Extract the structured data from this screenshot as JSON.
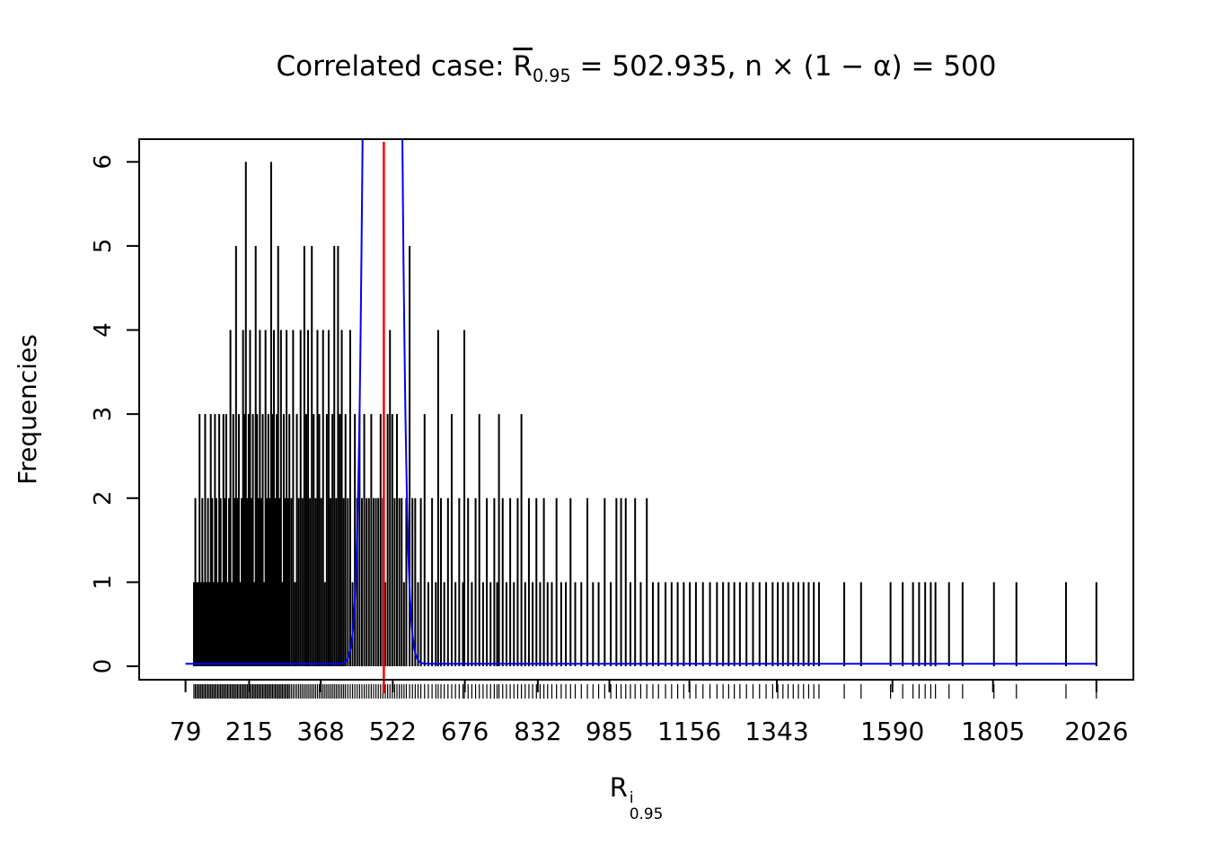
{
  "title": {
    "prefix": "Correlated case: ",
    "r": "R",
    "r_sub": "0.95",
    "suffix": " = 502.935, n × (1 − α) = 500"
  },
  "ylabel": "Frequencies",
  "xlabel_parts": {
    "r": "R",
    "sup": "i",
    "sub": "0.95"
  },
  "chart_data": {
    "type": "bar",
    "subtype": "frequency-spikes-with-density-curve-and-rug",
    "title": "Correlated case: R̄0.95 = 502.935, n × (1 − α) = 500",
    "xlabel": "R^i_0.95",
    "ylabel": "Frequencies",
    "xlim": [
      -20,
      2105
    ],
    "ylim": [
      -0.16,
      6.27
    ],
    "x_ticks": [
      79,
      215,
      368,
      522,
      676,
      832,
      985,
      1156,
      1343,
      1590,
      1805,
      2026
    ],
    "x_tick_labels": [
      "79",
      "215",
      "368",
      "522",
      "676",
      "832",
      "985",
      "1156",
      "1343",
      "1590",
      "1805",
      "2026"
    ],
    "y_ticks": [
      0,
      1,
      2,
      3,
      4,
      5,
      6
    ],
    "y_tick_labels": [
      "0",
      "1",
      "2",
      "3",
      "4",
      "5",
      "6"
    ],
    "colors": {
      "spikes": "#000000",
      "curve": "#0000ff",
      "vline": "#ff0000",
      "box": "#000000"
    },
    "red_vline_x": 502.935,
    "blue_curve": {
      "center": 500,
      "sd": 20,
      "peak_height": 60,
      "baseline": 0.03
    },
    "rug": true,
    "spikes": [
      [
        97,
        1
      ],
      [
        100,
        2
      ],
      [
        103,
        1
      ],
      [
        106,
        1
      ],
      [
        109,
        3
      ],
      [
        112,
        1
      ],
      [
        115,
        2
      ],
      [
        118,
        1
      ],
      [
        121,
        3
      ],
      [
        124,
        1
      ],
      [
        127,
        2
      ],
      [
        130,
        1
      ],
      [
        133,
        3
      ],
      [
        136,
        2
      ],
      [
        139,
        1
      ],
      [
        142,
        3
      ],
      [
        145,
        2
      ],
      [
        148,
        1
      ],
      [
        151,
        3
      ],
      [
        154,
        2
      ],
      [
        157,
        1
      ],
      [
        160,
        3
      ],
      [
        163,
        2
      ],
      [
        166,
        3
      ],
      [
        169,
        1
      ],
      [
        172,
        2
      ],
      [
        175,
        4
      ],
      [
        178,
        1
      ],
      [
        181,
        3
      ],
      [
        184,
        2
      ],
      [
        187,
        5
      ],
      [
        190,
        2
      ],
      [
        193,
        3
      ],
      [
        196,
        1
      ],
      [
        199,
        2
      ],
      [
        202,
        4
      ],
      [
        205,
        3
      ],
      [
        208,
        6
      ],
      [
        211,
        2
      ],
      [
        214,
        3
      ],
      [
        217,
        4
      ],
      [
        220,
        2
      ],
      [
        223,
        3
      ],
      [
        226,
        1
      ],
      [
        229,
        5
      ],
      [
        232,
        3
      ],
      [
        235,
        2
      ],
      [
        238,
        4
      ],
      [
        241,
        2
      ],
      [
        244,
        3
      ],
      [
        247,
        1
      ],
      [
        250,
        4
      ],
      [
        253,
        2
      ],
      [
        256,
        3
      ],
      [
        259,
        2
      ],
      [
        262,
        6
      ],
      [
        265,
        3
      ],
      [
        268,
        4
      ],
      [
        271,
        2
      ],
      [
        274,
        3
      ],
      [
        277,
        5
      ],
      [
        280,
        2
      ],
      [
        283,
        4
      ],
      [
        286,
        1
      ],
      [
        289,
        3
      ],
      [
        292,
        2
      ],
      [
        295,
        4
      ],
      [
        298,
        2
      ],
      [
        301,
        3
      ],
      [
        305,
        2
      ],
      [
        309,
        4
      ],
      [
        313,
        1
      ],
      [
        317,
        3
      ],
      [
        321,
        2
      ],
      [
        325,
        4
      ],
      [
        329,
        2
      ],
      [
        333,
        5
      ],
      [
        337,
        3
      ],
      [
        341,
        4
      ],
      [
        345,
        2
      ],
      [
        349,
        5
      ],
      [
        353,
        3
      ],
      [
        357,
        2
      ],
      [
        361,
        4
      ],
      [
        365,
        3
      ],
      [
        369,
        2
      ],
      [
        373,
        4
      ],
      [
        377,
        1
      ],
      [
        381,
        3
      ],
      [
        385,
        4
      ],
      [
        389,
        2
      ],
      [
        393,
        3
      ],
      [
        397,
        5
      ],
      [
        401,
        2
      ],
      [
        405,
        5
      ],
      [
        409,
        3
      ],
      [
        413,
        4
      ],
      [
        417,
        2
      ],
      [
        421,
        3
      ],
      [
        426,
        2
      ],
      [
        431,
        4
      ],
      [
        436,
        1
      ],
      [
        441,
        3
      ],
      [
        446,
        2
      ],
      [
        451,
        3
      ],
      [
        456,
        2
      ],
      [
        461,
        3
      ],
      [
        466,
        2
      ],
      [
        471,
        2
      ],
      [
        476,
        3
      ],
      [
        481,
        2
      ],
      [
        486,
        2
      ],
      [
        491,
        2
      ],
      [
        496,
        3
      ],
      [
        501,
        2
      ],
      [
        506,
        1
      ],
      [
        511,
        3
      ],
      [
        516,
        4
      ],
      [
        521,
        3
      ],
      [
        526,
        2
      ],
      [
        531,
        3
      ],
      [
        536,
        2
      ],
      [
        541,
        2
      ],
      [
        546,
        1
      ],
      [
        551,
        2
      ],
      [
        558,
        5
      ],
      [
        564,
        2
      ],
      [
        570,
        2
      ],
      [
        576,
        1
      ],
      [
        582,
        2
      ],
      [
        590,
        3
      ],
      [
        598,
        1
      ],
      [
        606,
        2
      ],
      [
        614,
        1
      ],
      [
        619,
        4
      ],
      [
        625,
        2
      ],
      [
        632,
        1
      ],
      [
        640,
        2
      ],
      [
        648,
        3
      ],
      [
        656,
        1
      ],
      [
        664,
        2
      ],
      [
        672,
        1
      ],
      [
        675,
        4
      ],
      [
        683,
        2
      ],
      [
        691,
        1
      ],
      [
        699,
        2
      ],
      [
        707,
        3
      ],
      [
        715,
        1
      ],
      [
        723,
        2
      ],
      [
        731,
        1
      ],
      [
        739,
        2
      ],
      [
        745,
        1
      ],
      [
        749,
        3
      ],
      [
        757,
        2
      ],
      [
        765,
        1
      ],
      [
        773,
        2
      ],
      [
        781,
        1
      ],
      [
        789,
        2
      ],
      [
        797,
        3
      ],
      [
        805,
        1
      ],
      [
        813,
        2
      ],
      [
        821,
        1
      ],
      [
        829,
        2
      ],
      [
        837,
        1
      ],
      [
        845,
        2
      ],
      [
        853,
        1
      ],
      [
        862,
        1
      ],
      [
        872,
        2
      ],
      [
        882,
        1
      ],
      [
        892,
        1
      ],
      [
        902,
        2
      ],
      [
        912,
        1
      ],
      [
        925,
        1
      ],
      [
        938,
        2
      ],
      [
        950,
        1
      ],
      [
        962,
        1
      ],
      [
        975,
        2
      ],
      [
        988,
        1
      ],
      [
        1000,
        2
      ],
      [
        1010,
        2
      ],
      [
        1020,
        2
      ],
      [
        1030,
        1
      ],
      [
        1040,
        2
      ],
      [
        1052,
        1
      ],
      [
        1065,
        2
      ],
      [
        1078,
        1
      ],
      [
        1090,
        1
      ],
      [
        1105,
        1
      ],
      [
        1118,
        1
      ],
      [
        1131,
        1
      ],
      [
        1144,
        1
      ],
      [
        1157,
        1
      ],
      [
        1170,
        1
      ],
      [
        1185,
        1
      ],
      [
        1200,
        1
      ],
      [
        1215,
        1
      ],
      [
        1228,
        1
      ],
      [
        1240,
        1
      ],
      [
        1252,
        1
      ],
      [
        1264,
        1
      ],
      [
        1278,
        1
      ],
      [
        1292,
        1
      ],
      [
        1306,
        1
      ],
      [
        1320,
        1
      ],
      [
        1334,
        1
      ],
      [
        1345,
        1
      ],
      [
        1356,
        1
      ],
      [
        1367,
        1
      ],
      [
        1378,
        1
      ],
      [
        1389,
        1
      ],
      [
        1400,
        1
      ],
      [
        1411,
        1
      ],
      [
        1422,
        1
      ],
      [
        1433,
        1
      ],
      [
        1487,
        1
      ],
      [
        1523,
        1
      ],
      [
        1586,
        1
      ],
      [
        1612,
        1
      ],
      [
        1634,
        1
      ],
      [
        1647,
        1
      ],
      [
        1660,
        1
      ],
      [
        1672,
        1
      ],
      [
        1682,
        1
      ],
      [
        1711,
        1
      ],
      [
        1740,
        1
      ],
      [
        1807,
        1
      ],
      [
        1855,
        1
      ],
      [
        1961,
        1
      ],
      [
        2026,
        1
      ]
    ]
  }
}
